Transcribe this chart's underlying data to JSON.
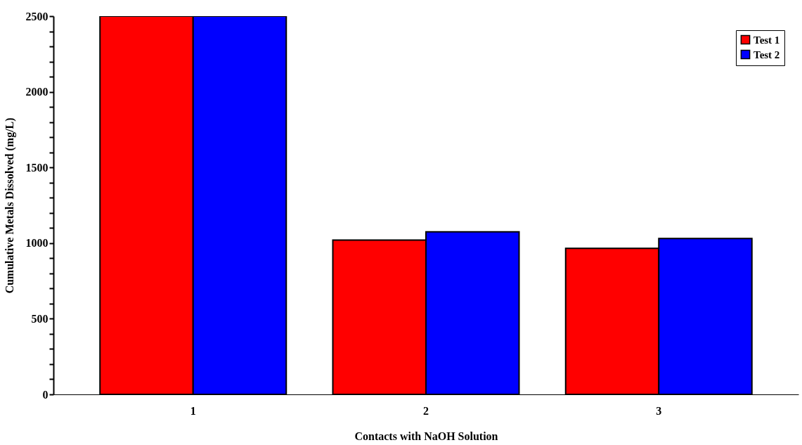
{
  "chart_data": {
    "type": "bar",
    "xlabel": "Contacts with NaOH Solution",
    "ylabel": "Cumulative Metals Dissolved (mg/L)",
    "categories": [
      "1",
      "2",
      "3"
    ],
    "series": [
      {
        "name": "Test 1",
        "color": "#ff0000",
        "values": [
          2500,
          1020,
          965
        ]
      },
      {
        "name": "Test 2",
        "color": "#0000ff",
        "values": [
          2500,
          1075,
          1030
        ]
      }
    ],
    "ylim": [
      0,
      2500
    ],
    "yticks": [
      0,
      {
        "value": 100,
        "label": null
      },
      {
        "value": 200,
        "label": null
      },
      {
        "value": 300,
        "label": null
      },
      {
        "value": 400,
        "label": null
      },
      500,
      {
        "value": 600,
        "label": null
      },
      {
        "value": 700,
        "label": null
      },
      {
        "value": 800,
        "label": null
      },
      {
        "value": 900,
        "label": null
      },
      1000,
      {
        "value": 1100,
        "label": null
      },
      {
        "value": 1200,
        "label": null
      },
      {
        "value": 1300,
        "label": null
      },
      {
        "value": 1400,
        "label": null
      },
      1500,
      {
        "value": 1600,
        "label": null
      },
      {
        "value": 1700,
        "label": null
      },
      {
        "value": 1800,
        "label": null
      },
      {
        "value": 1900,
        "label": null
      },
      2000,
      {
        "value": 2100,
        "label": null
      },
      {
        "value": 2200,
        "label": null
      },
      {
        "value": 2300,
        "label": null
      },
      {
        "value": 2400,
        "label": null
      },
      2500
    ],
    "grid": false,
    "legend": "top right"
  }
}
